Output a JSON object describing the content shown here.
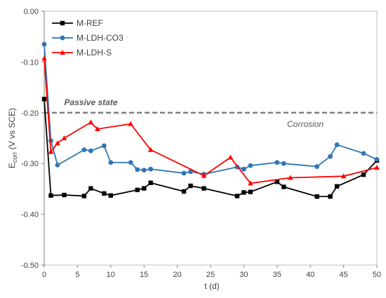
{
  "chart_data": {
    "type": "line",
    "xlabel": "t (d)",
    "ylabel_main": "E",
    "ylabel_sub": "corr",
    "ylabel_rest": " (V vs SCE)",
    "xlim": [
      0,
      50
    ],
    "ylim": [
      -0.5,
      0.0
    ],
    "x_ticks": [
      0,
      5,
      10,
      15,
      20,
      25,
      30,
      35,
      40,
      45,
      50
    ],
    "x_tick_labels": [
      "0",
      "5",
      "10",
      "15",
      "20",
      "25",
      "30",
      "35",
      "40",
      "45",
      "50"
    ],
    "y_ticks": [
      0.0,
      -0.1,
      -0.2,
      -0.3,
      -0.4,
      -0.5
    ],
    "y_tick_labels": [
      "0.00",
      "-0.10",
      "-0.20",
      "-0.30",
      "-0.40",
      "-0.50"
    ],
    "legend_position": "top-left",
    "grid": false,
    "annotations": [
      {
        "text": "Passive state",
        "x": 3,
        "y": -0.185
      },
      {
        "text": "Corrosion",
        "x": 36.5,
        "y": -0.228
      }
    ],
    "threshold": {
      "y": -0.2,
      "color": "#7f7f7f"
    },
    "series": [
      {
        "name": "M-REF",
        "color": "#000000",
        "marker": "square",
        "x": [
          0,
          1,
          3,
          6,
          7,
          9,
          10,
          14,
          15,
          16,
          21,
          22,
          24,
          29,
          30,
          31,
          35,
          36,
          41,
          43,
          44,
          48,
          50
        ],
        "y": [
          -0.173,
          -0.363,
          -0.362,
          -0.364,
          -0.349,
          -0.359,
          -0.363,
          -0.352,
          -0.349,
          -0.338,
          -0.355,
          -0.344,
          -0.349,
          -0.364,
          -0.357,
          -0.356,
          -0.336,
          -0.346,
          -0.365,
          -0.365,
          -0.345,
          -0.322,
          -0.294
        ]
      },
      {
        "name": "M-LDH-CO3",
        "color": "#2e75b6",
        "marker": "circle",
        "x": [
          0,
          1,
          2,
          6,
          7,
          9,
          10,
          13,
          14,
          15,
          16,
          21,
          22,
          24,
          29,
          30,
          31,
          35,
          36,
          41,
          43,
          44,
          48,
          50
        ],
        "y": [
          -0.065,
          -0.255,
          -0.303,
          -0.273,
          -0.275,
          -0.265,
          -0.298,
          -0.298,
          -0.312,
          -0.313,
          -0.311,
          -0.319,
          -0.316,
          -0.321,
          -0.307,
          -0.311,
          -0.304,
          -0.298,
          -0.3,
          -0.306,
          -0.286,
          -0.263,
          -0.28,
          -0.292
        ]
      },
      {
        "name": "M-LDH-S",
        "color": "#ff0000",
        "marker": "triangle",
        "x": [
          0,
          1,
          2,
          3,
          7,
          8,
          13,
          16,
          24,
          28,
          31,
          37,
          45,
          50
        ],
        "y": [
          -0.093,
          -0.277,
          -0.26,
          -0.25,
          -0.219,
          -0.232,
          -0.222,
          -0.273,
          -0.324,
          -0.288,
          -0.339,
          -0.328,
          -0.325,
          -0.308
        ]
      }
    ]
  }
}
